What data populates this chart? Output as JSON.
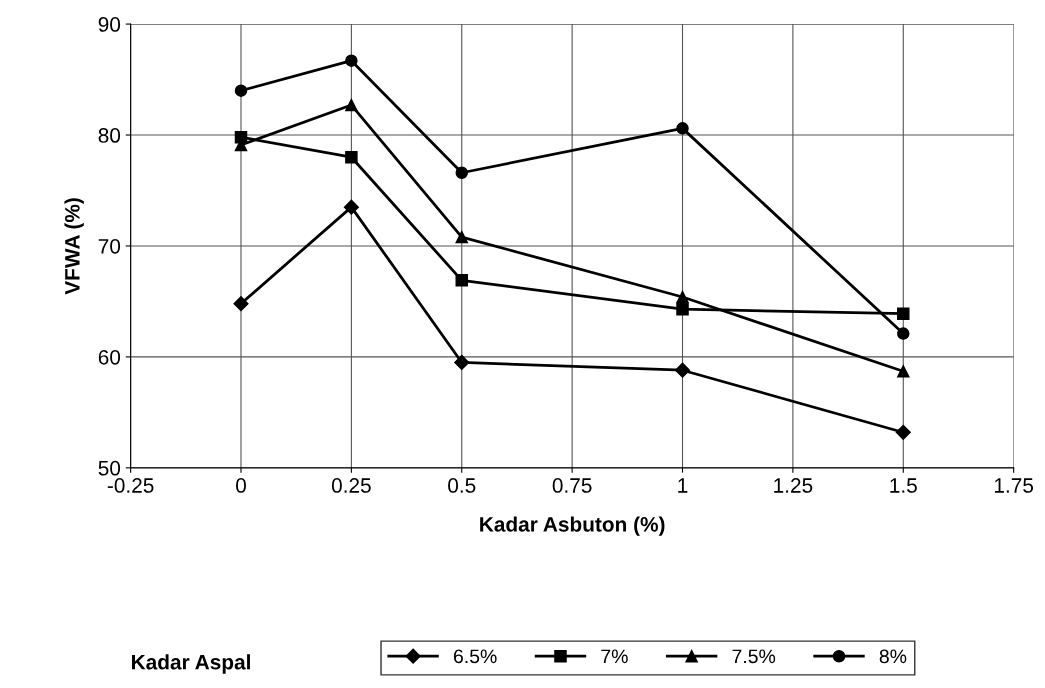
{
  "chart_data": {
    "type": "line",
    "xlabel": "Kadar Asbuton (%)",
    "ylabel": "VFWA (%)",
    "legend_title": "Kadar Aspal",
    "x": [
      0,
      0.25,
      0.5,
      1,
      1.5
    ],
    "series": [
      {
        "name": "6.5%",
        "color": "#000000",
        "marker": "diamond",
        "values": [
          64.8,
          73.5,
          59.5,
          58.8,
          53.2
        ]
      },
      {
        "name": "7%",
        "color": "#000000",
        "marker": "square",
        "values": [
          79.8,
          78.0,
          66.9,
          64.3,
          63.9
        ]
      },
      {
        "name": "7.5%",
        "color": "#000000",
        "marker": "triangle",
        "values": [
          79.1,
          82.7,
          70.8,
          65.4,
          58.7
        ]
      },
      {
        "name": "8%",
        "color": "#000000",
        "marker": "circle",
        "values": [
          84.0,
          86.7,
          76.6,
          80.6,
          62.1
        ]
      }
    ],
    "xlim": [
      -0.25,
      1.75
    ],
    "xticks": [
      -0.25,
      0,
      0.25,
      0.5,
      0.75,
      1,
      1.25,
      1.5,
      1.75
    ],
    "ylim": [
      50,
      90
    ],
    "yticks": [
      50,
      60,
      70,
      80,
      90
    ],
    "grid": true,
    "legend": "bottom",
    "line_style": "solid"
  }
}
